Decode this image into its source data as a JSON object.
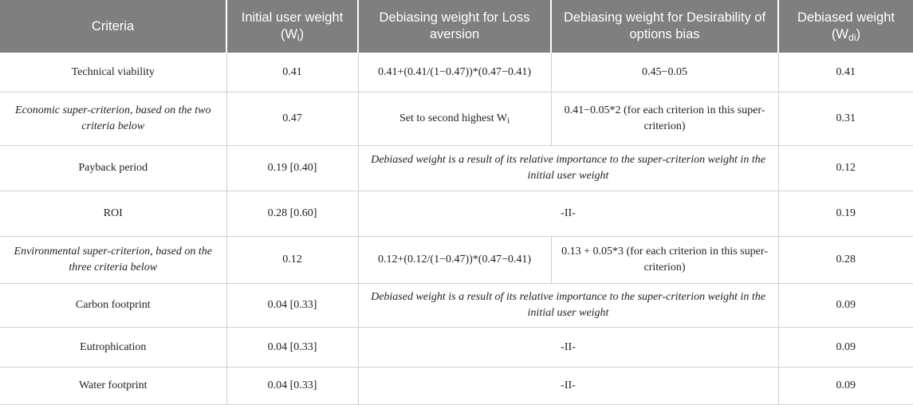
{
  "header": {
    "criteria": "Criteria",
    "initial_weight": "Initial user weight (W",
    "initial_weight_sub": "i",
    "initial_weight_close": ")",
    "loss_aversion": "Debiasing weight for Loss aversion",
    "desirability": "Debiasing weight for Desirability of options bias",
    "debiased": "Debiased weight (W",
    "debiased_sub": "di",
    "debiased_close": ")"
  },
  "rows": [
    {
      "criteria": "Technical viability",
      "initial": "0.41",
      "loss": "0.41+(0.41/(1−0.47))*(0.47−0.41)",
      "desir": "0.45−0.05",
      "debiased": "0.41"
    },
    {
      "criteria": "Economic super-criterion, based on the two criteria below",
      "initial": "0.47",
      "loss": "Set to second highest W",
      "loss_sub": "i",
      "desir": "0.41−0.05*2 (for each criterion in this super-criterion)",
      "debiased": "0.31"
    },
    {
      "criteria": "Payback period",
      "initial": "0.19 [0.40]",
      "span": "Debiased weight is a result of its relative importance to the super-criterion weight in the initial user weight",
      "debiased": "0.12"
    },
    {
      "criteria": "ROI",
      "initial": "0.28 [0.60]",
      "span": "-II-",
      "debiased": "0.19"
    },
    {
      "criteria": "Environmental super-criterion, based on the three criteria below",
      "initial": "0.12",
      "loss": "0.12+(0.12/(1−0.47))*(0.47−0.41)",
      "desir": "0.13 + 0.05*3 (for each criterion in this super-criterion)",
      "debiased": "0.28"
    },
    {
      "criteria": "Carbon footprint",
      "initial": "0.04 [0.33]",
      "span": "Debiased weight is a result of its relative importance to the super-criterion weight in the initial user weight",
      "debiased": "0.09"
    },
    {
      "criteria": "Eutrophication",
      "initial": "0.04 [0.33]",
      "span": "-II-",
      "debiased": "0.09"
    },
    {
      "criteria": "Water footprint",
      "initial": "0.04 [0.33]",
      "span": "-II-",
      "debiased": "0.09"
    }
  ]
}
